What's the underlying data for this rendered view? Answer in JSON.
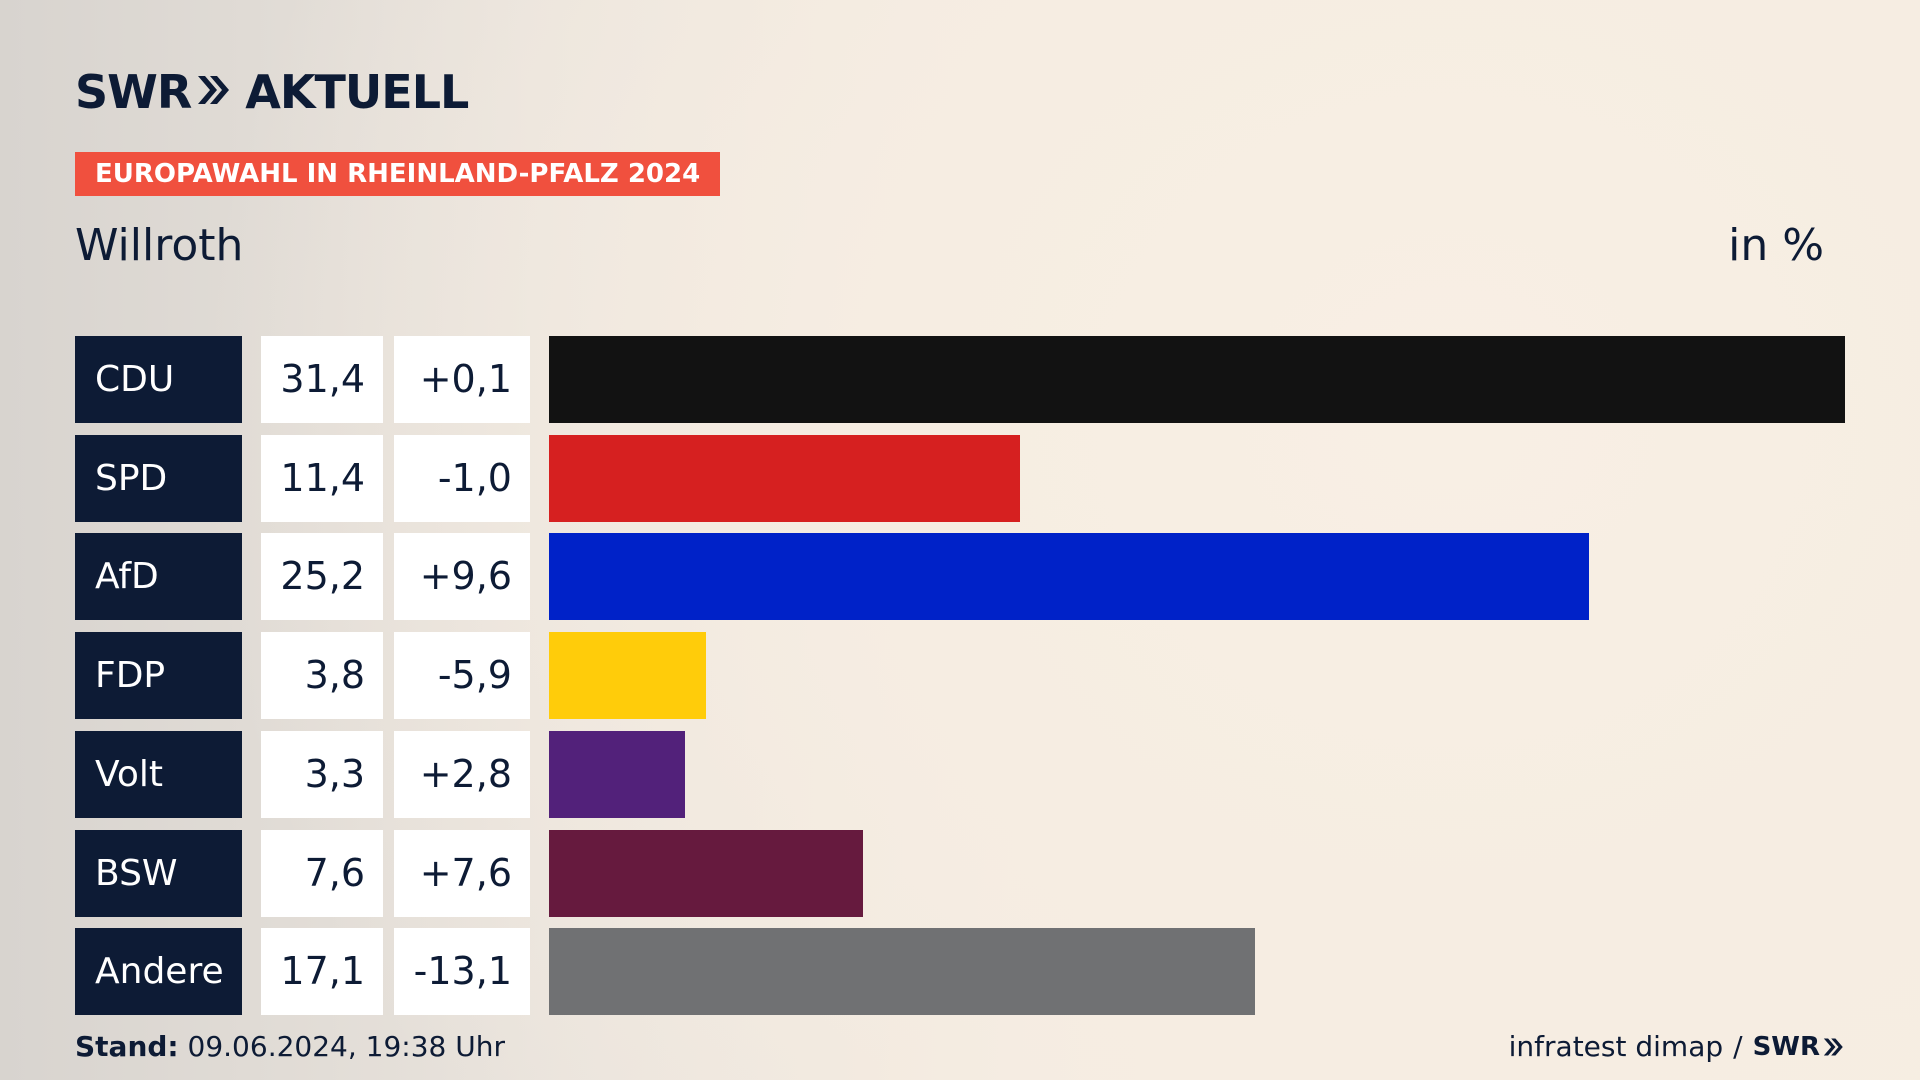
{
  "brand": {
    "name": "SWR",
    "product": "AKTUELL"
  },
  "tag": "EUROPAWAHL IN RHEINLAND-PFALZ 2024",
  "place": "Willroth",
  "unit": "in %",
  "chart_data": {
    "type": "bar",
    "orientation": "horizontal",
    "title": "Willroth",
    "unit": "in %",
    "categories": [
      "CDU",
      "SPD",
      "AfD",
      "FDP",
      "Volt",
      "BSW",
      "Andere"
    ],
    "values": [
      31.4,
      11.4,
      25.2,
      3.8,
      3.3,
      7.6,
      17.1
    ],
    "value_labels": [
      "31,4",
      "11,4",
      "25,2",
      "3,8",
      "3,3",
      "7,6",
      "17,1"
    ],
    "diffs": [
      0.1,
      -1.0,
      9.6,
      -5.9,
      2.8,
      7.6,
      -13.1
    ],
    "diff_labels": [
      "+0,1",
      "-1,0",
      "+9,6",
      "-5,9",
      "+2,8",
      "+7,6",
      "-13,1"
    ],
    "colors": [
      "#121212",
      "#d62020",
      "#0022c8",
      "#ffcc0a",
      "#52217a",
      "#661a3e",
      "#707173"
    ],
    "xlim": [
      0,
      31.4
    ]
  },
  "footer": {
    "stand_label": "Stand:",
    "stand_value": "09.06.2024, 19:38 Uhr",
    "source": "infratest dimap",
    "separator": "/",
    "source_brand": "SWR"
  },
  "colors": {
    "navy": "#0d1b35",
    "tag_red": "#f0503e"
  }
}
